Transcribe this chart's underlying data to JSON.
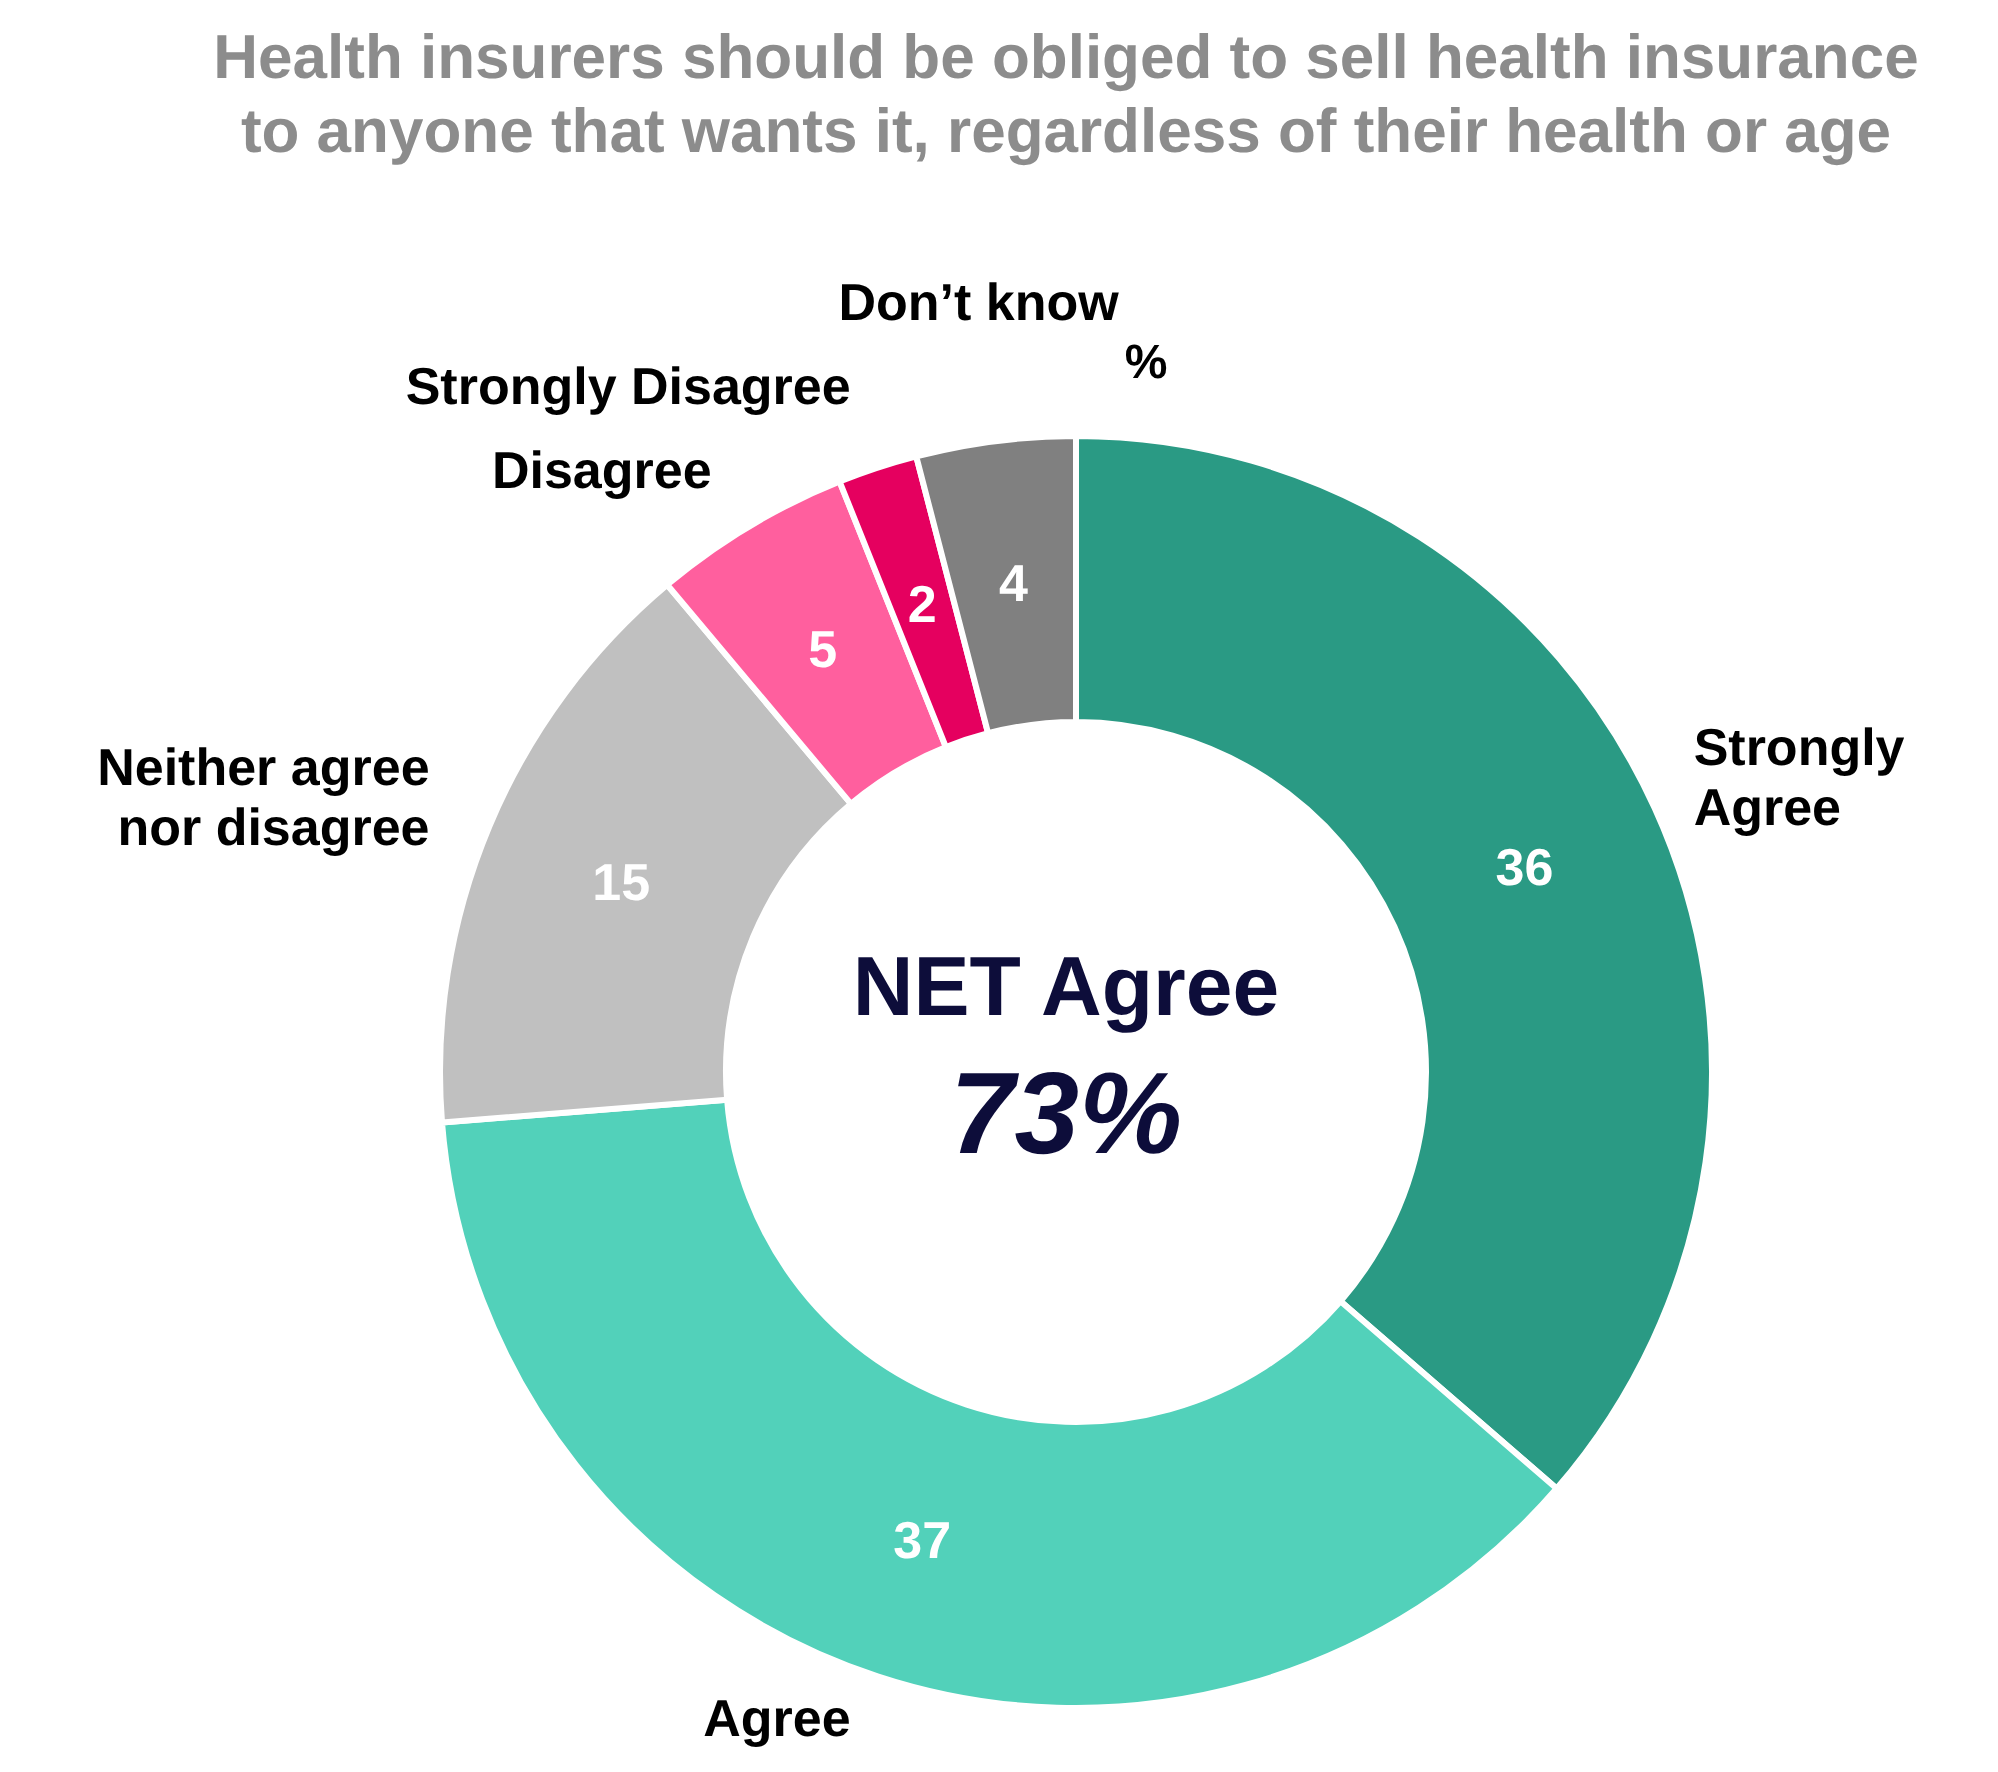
{
  "chart_data": {
    "type": "donut",
    "title": "Health insurers should be obliged to sell health insurance to anyone that wants it, regardless of their health or age",
    "categories": [
      "Strongly Agree",
      "Agree",
      "Neither agree nor disagree",
      "Disagree",
      "Strongly Disagree",
      "Don’t know"
    ],
    "values": [
      36,
      37,
      15,
      5,
      2,
      4
    ],
    "colors": [
      "#2a9a84",
      "#52d1ba",
      "#c0c0c0",
      "#ff5f9e",
      "#e5005f",
      "#808080"
    ],
    "data_labels": true,
    "annotations": [
      "%",
      "NET Agree",
      "73%"
    ]
  }
}
